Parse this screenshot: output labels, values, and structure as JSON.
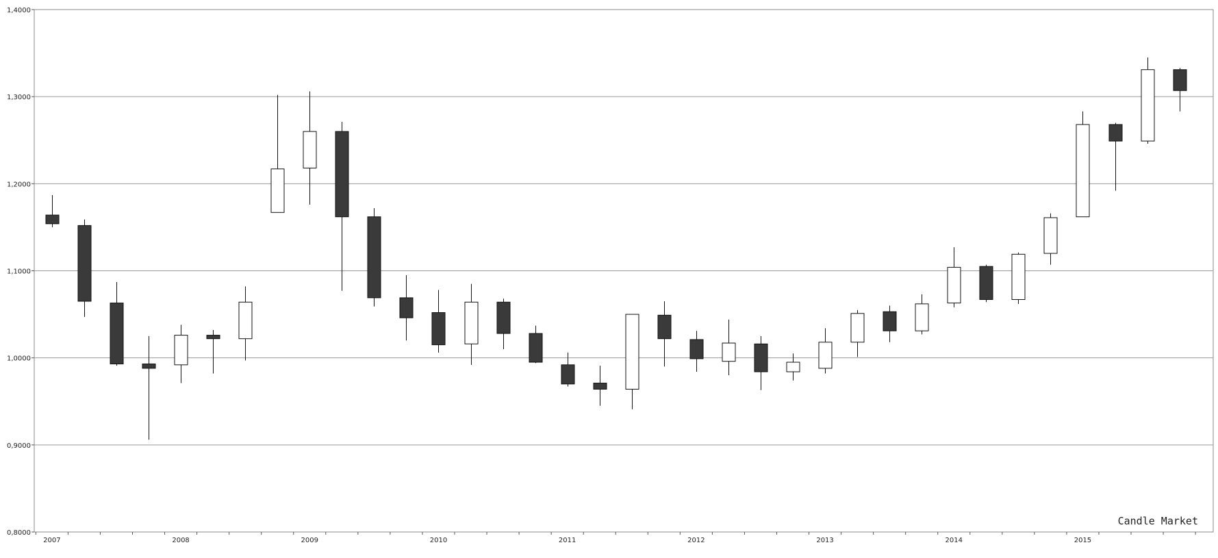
{
  "chart_data": {
    "type": "candlestick",
    "watermark": "Candle Market",
    "ylim": [
      0.8,
      1.4
    ],
    "y_ticks": [
      0.8,
      0.9,
      1.0,
      1.1,
      1.2,
      1.3,
      1.4
    ],
    "y_tick_labels": [
      "0,8000",
      "0,9000",
      "1,0000",
      "1,1000",
      "1,2000",
      "1,3000",
      "1,4000"
    ],
    "x_tick_labels": [
      "2007",
      "2008",
      "2009",
      "2010",
      "2011",
      "2012",
      "2013",
      "2014",
      "2015"
    ],
    "grid": "horizontal",
    "up_color": "#ffffff",
    "down_color": "#3a3a3a",
    "candles": [
      {
        "open": 1.164,
        "high": 1.187,
        "low": 1.15,
        "close": 1.154
      },
      {
        "open": 1.152,
        "high": 1.159,
        "low": 1.047,
        "close": 1.065
      },
      {
        "open": 1.063,
        "high": 1.087,
        "low": 0.991,
        "close": 0.993
      },
      {
        "open": 0.993,
        "high": 1.025,
        "low": 0.906,
        "close": 0.988
      },
      {
        "open": 0.992,
        "high": 1.038,
        "low": 0.971,
        "close": 1.026
      },
      {
        "open": 1.026,
        "high": 1.032,
        "low": 0.982,
        "close": 1.022
      },
      {
        "open": 1.022,
        "high": 1.082,
        "low": 0.997,
        "close": 1.064
      },
      {
        "open": 1.167,
        "high": 1.302,
        "low": 1.167,
        "close": 1.217
      },
      {
        "open": 1.218,
        "high": 1.306,
        "low": 1.176,
        "close": 1.26
      },
      {
        "open": 1.26,
        "high": 1.271,
        "low": 1.077,
        "close": 1.162
      },
      {
        "open": 1.162,
        "high": 1.172,
        "low": 1.059,
        "close": 1.069
      },
      {
        "open": 1.069,
        "high": 1.095,
        "low": 1.02,
        "close": 1.046
      },
      {
        "open": 1.052,
        "high": 1.078,
        "low": 1.006,
        "close": 1.015
      },
      {
        "open": 1.016,
        "high": 1.085,
        "low": 0.992,
        "close": 1.064
      },
      {
        "open": 1.064,
        "high": 1.068,
        "low": 1.01,
        "close": 1.028
      },
      {
        "open": 1.028,
        "high": 1.037,
        "low": 0.994,
        "close": 0.995
      },
      {
        "open": 0.992,
        "high": 1.006,
        "low": 0.967,
        "close": 0.97
      },
      {
        "open": 0.971,
        "high": 0.991,
        "low": 0.945,
        "close": 0.964
      },
      {
        "open": 0.964,
        "high": 1.05,
        "low": 0.941,
        "close": 1.05
      },
      {
        "open": 1.049,
        "high": 1.065,
        "low": 0.99,
        "close": 1.022
      },
      {
        "open": 1.021,
        "high": 1.031,
        "low": 0.984,
        "close": 0.999
      },
      {
        "open": 0.996,
        "high": 1.044,
        "low": 0.98,
        "close": 1.017
      },
      {
        "open": 1.016,
        "high": 1.025,
        "low": 0.963,
        "close": 0.984
      },
      {
        "open": 0.984,
        "high": 1.005,
        "low": 0.974,
        "close": 0.995
      },
      {
        "open": 0.988,
        "high": 1.034,
        "low": 0.982,
        "close": 1.018
      },
      {
        "open": 1.018,
        "high": 1.055,
        "low": 1.001,
        "close": 1.051
      },
      {
        "open": 1.053,
        "high": 1.06,
        "low": 1.018,
        "close": 1.031
      },
      {
        "open": 1.031,
        "high": 1.073,
        "low": 1.027,
        "close": 1.062
      },
      {
        "open": 1.063,
        "high": 1.127,
        "low": 1.058,
        "close": 1.104
      },
      {
        "open": 1.105,
        "high": 1.107,
        "low": 1.064,
        "close": 1.067
      },
      {
        "open": 1.067,
        "high": 1.121,
        "low": 1.062,
        "close": 1.119
      },
      {
        "open": 1.12,
        "high": 1.166,
        "low": 1.107,
        "close": 1.161
      },
      {
        "open": 1.162,
        "high": 1.283,
        "low": 1.162,
        "close": 1.268
      },
      {
        "open": 1.268,
        "high": 1.27,
        "low": 1.192,
        "close": 1.249
      },
      {
        "open": 1.249,
        "high": 1.345,
        "low": 1.246,
        "close": 1.331
      },
      {
        "open": 1.331,
        "high": 1.333,
        "low": 1.283,
        "close": 1.307
      }
    ]
  }
}
